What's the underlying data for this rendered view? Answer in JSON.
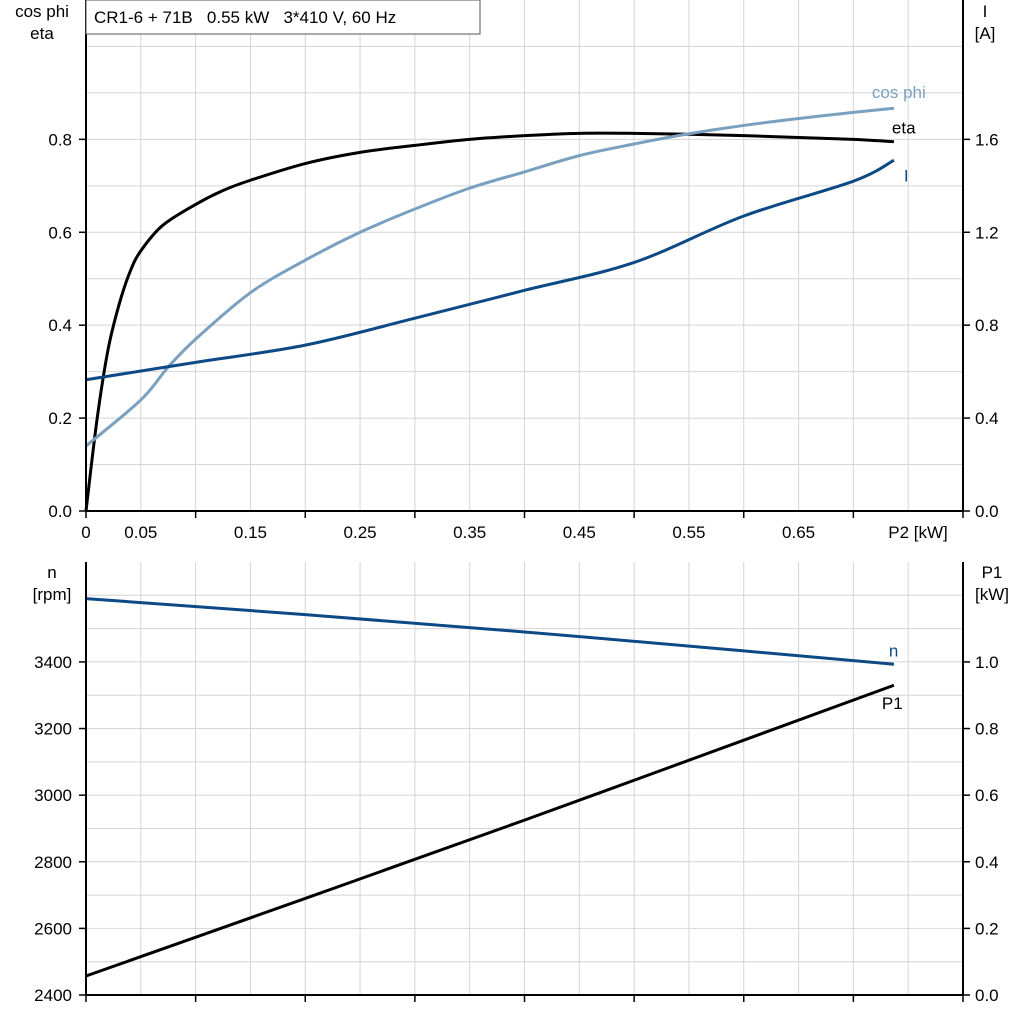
{
  "title_box": "CR1-6 + 71B   0.55 kW   3*410 V, 60 Hz",
  "colors": {
    "eta": "#000000",
    "cos_phi": "#7aa0c0",
    "I": "#0d4a85",
    "n": "#0d4a85",
    "P1": "#000000",
    "grid": "#d4d4d4"
  },
  "chart_data": [
    {
      "type": "line",
      "grid": true,
      "xlabel": "P2 [kW]",
      "xlim": [
        0,
        0.8
      ],
      "x_tick_labels": [
        "0",
        "0.05",
        "0.15",
        "0.25",
        "0.35",
        "0.45",
        "0.55",
        "0.65"
      ],
      "x_tick_values": [
        0,
        0.05,
        0.15,
        0.25,
        0.35,
        0.45,
        0.55,
        0.65
      ],
      "ylabel_left": [
        "cos phi",
        "eta"
      ],
      "ylim_left": [
        0,
        1.1
      ],
      "y_ticks_left": [
        "0.0",
        "0.2",
        "0.4",
        "0.6",
        "0.8"
      ],
      "ylabel_right": [
        "I",
        "[A]"
      ],
      "ylim_right": [
        0,
        2.2
      ],
      "y_ticks_right": [
        "0.0",
        "0.4",
        "0.8",
        "1.2",
        "1.6"
      ],
      "series": [
        {
          "name": "eta",
          "axis": "left",
          "x": [
            0,
            0.01,
            0.02,
            0.03,
            0.04,
            0.05,
            0.07,
            0.1,
            0.125,
            0.15,
            0.2,
            0.25,
            0.3,
            0.35,
            0.4,
            0.45,
            0.5,
            0.55,
            0.6,
            0.65,
            0.7,
            0.737
          ],
          "y": [
            0,
            0.196,
            0.346,
            0.443,
            0.514,
            0.56,
            0.615,
            0.66,
            0.69,
            0.712,
            0.748,
            0.772,
            0.787,
            0.8,
            0.808,
            0.813,
            0.813,
            0.811,
            0.808,
            0.804,
            0.8,
            0.795
          ]
        },
        {
          "name": "cos phi",
          "axis": "left",
          "x": [
            0,
            0.05,
            0.075,
            0.1,
            0.15,
            0.2,
            0.25,
            0.3,
            0.35,
            0.4,
            0.45,
            0.5,
            0.55,
            0.6,
            0.65,
            0.7,
            0.737
          ],
          "y": [
            0.14,
            0.239,
            0.31,
            0.37,
            0.47,
            0.54,
            0.6,
            0.65,
            0.695,
            0.73,
            0.765,
            0.79,
            0.812,
            0.83,
            0.845,
            0.858,
            0.867
          ]
        },
        {
          "name": "I",
          "axis": "right",
          "x": [
            0,
            0.1,
            0.2,
            0.3,
            0.4,
            0.5,
            0.6,
            0.7,
            0.737
          ],
          "y": [
            0.565,
            0.64,
            0.714,
            0.83,
            0.95,
            1.07,
            1.27,
            1.42,
            1.51
          ]
        }
      ]
    },
    {
      "type": "line",
      "grid": true,
      "xlim": [
        0,
        0.8
      ],
      "ylabel_left": [
        "n",
        "[rpm]"
      ],
      "ylim_left": [
        2400,
        3700
      ],
      "y_ticks_left": [
        "2400",
        "2600",
        "2800",
        "3000",
        "3200",
        "3400"
      ],
      "ylabel_right": [
        "P1",
        "[kW]"
      ],
      "ylim_right": [
        0,
        1.3
      ],
      "y_ticks_right": [
        "0.0",
        "0.2",
        "0.4",
        "0.6",
        "0.8",
        "1.0"
      ],
      "series": [
        {
          "name": "n",
          "axis": "left",
          "x": [
            0,
            0.2,
            0.4,
            0.6,
            0.737
          ],
          "y": [
            3590,
            3542,
            3490,
            3433,
            3393
          ]
        },
        {
          "name": "P1",
          "axis": "right",
          "x": [
            0,
            0.2,
            0.4,
            0.6,
            0.737
          ],
          "y": [
            0.057,
            0.29,
            0.525,
            0.765,
            0.93
          ]
        }
      ]
    }
  ]
}
